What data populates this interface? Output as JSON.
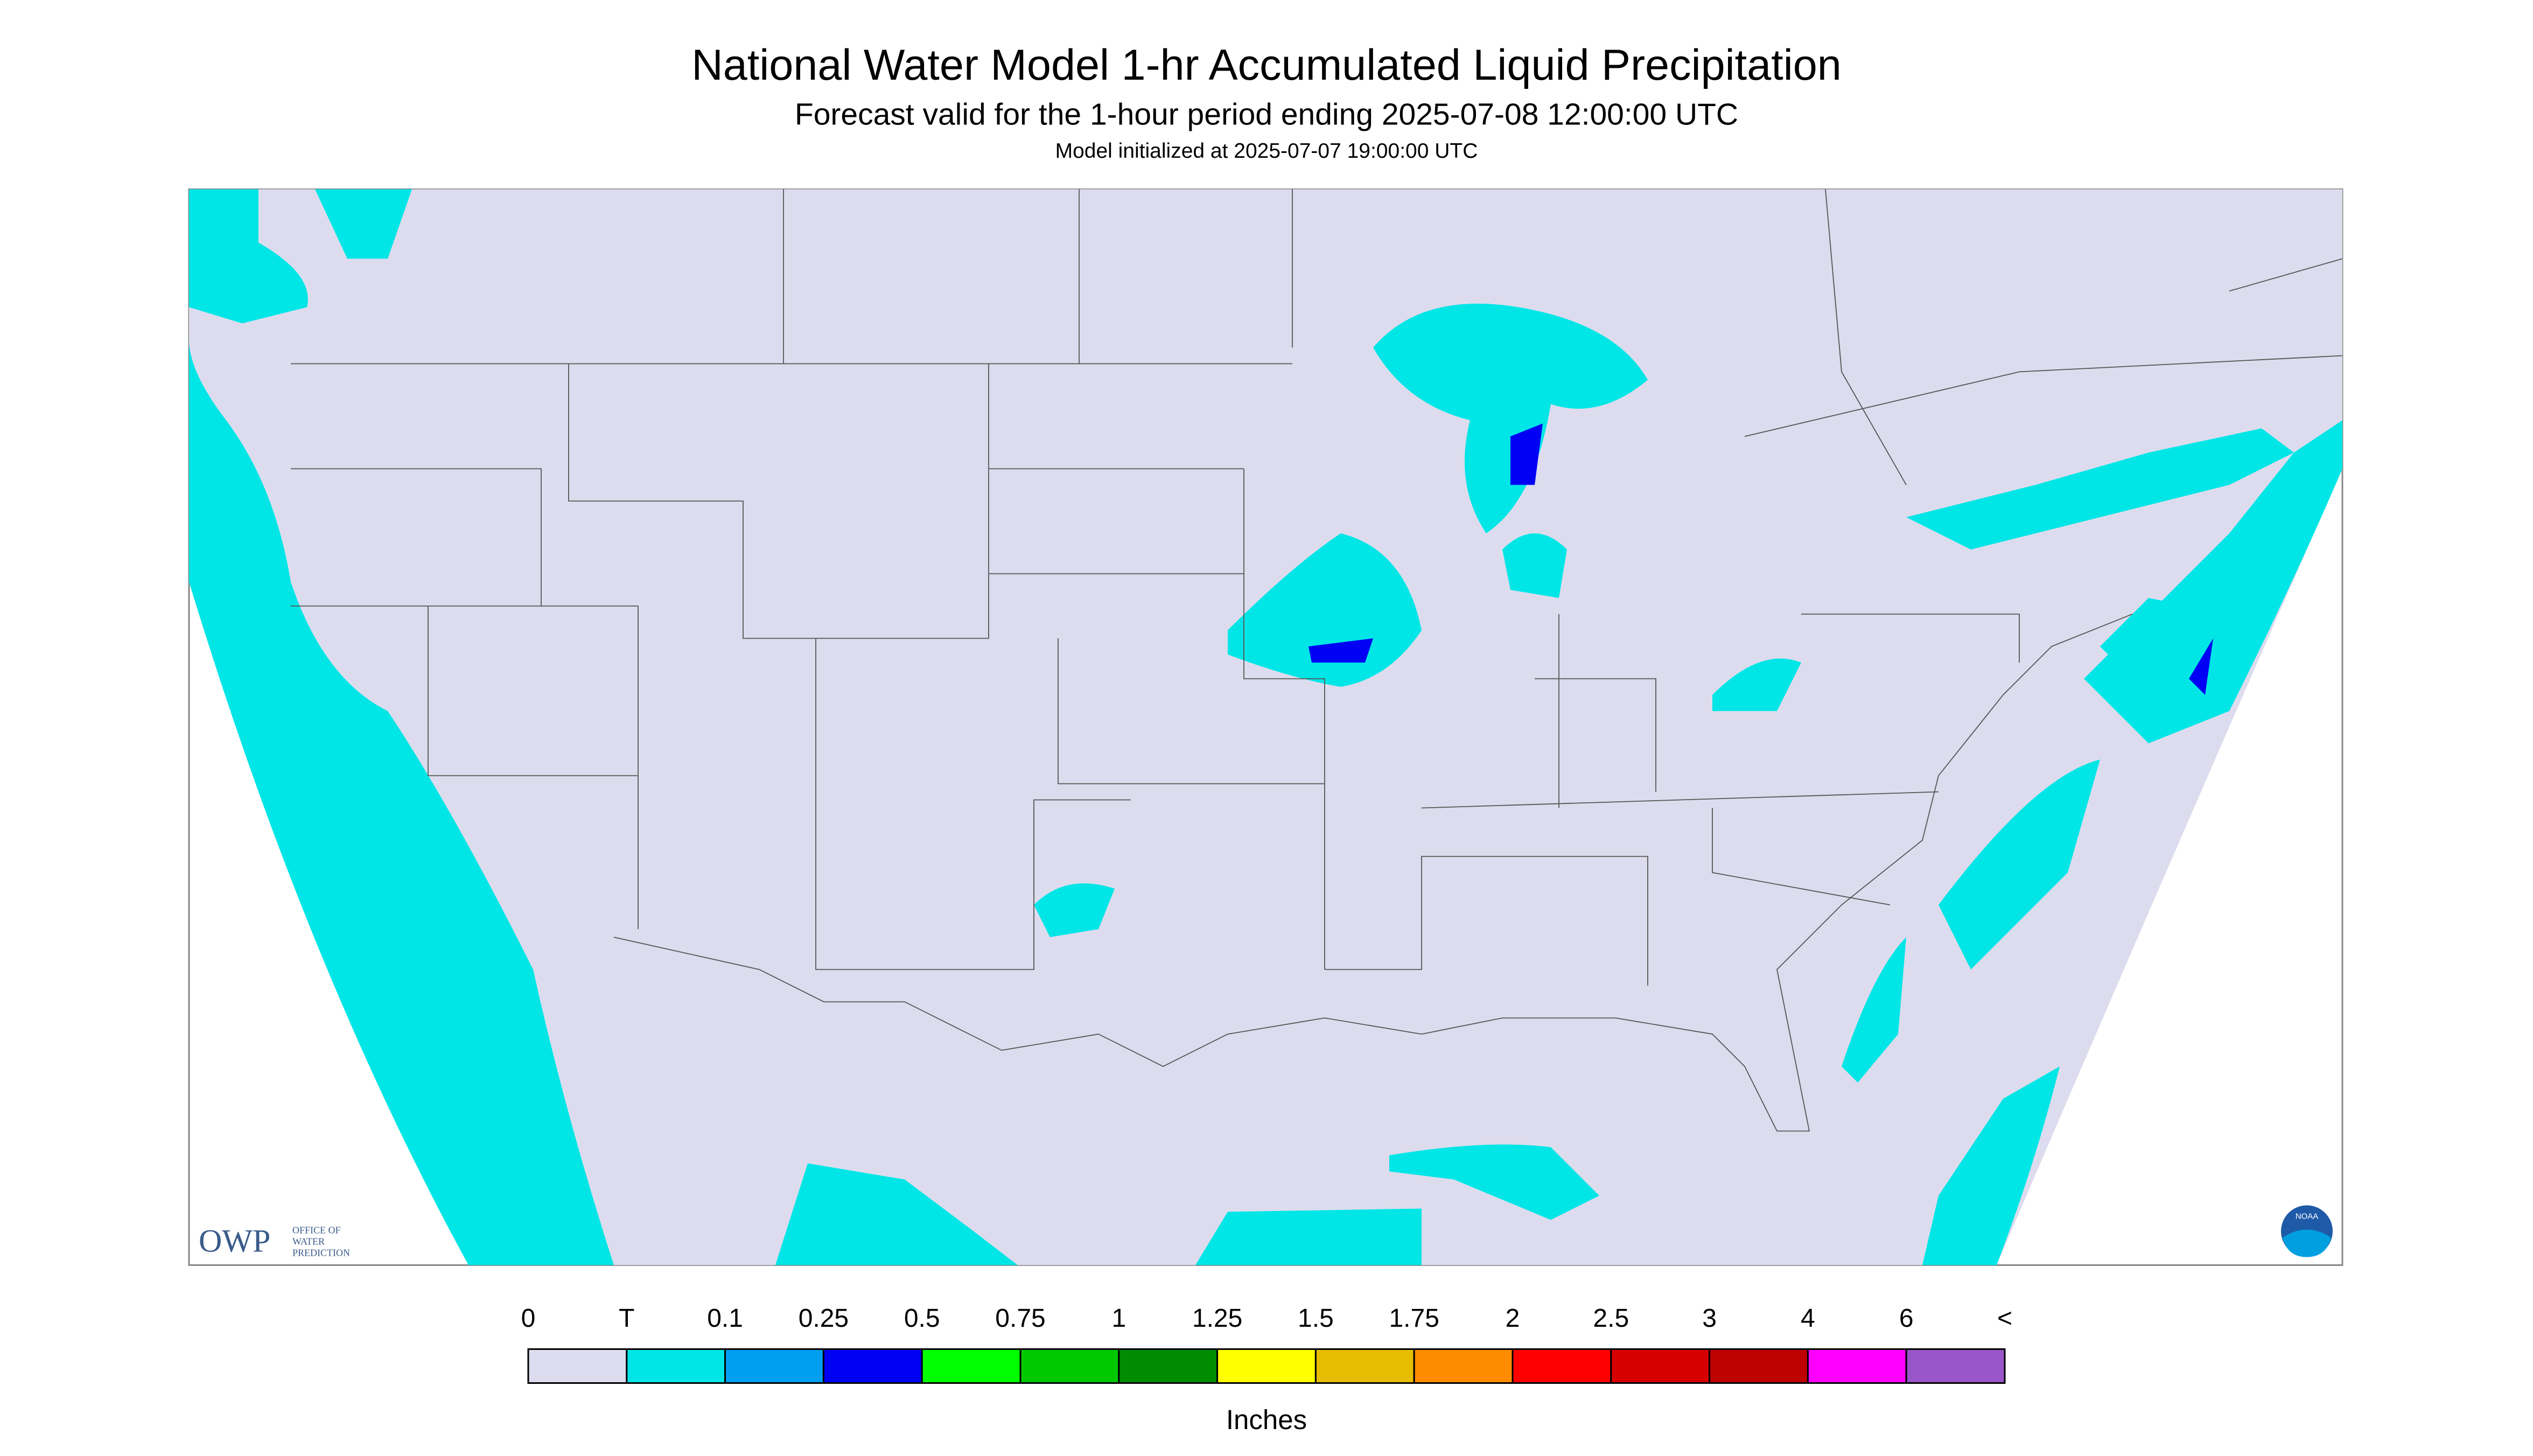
{
  "header": {
    "title": "National Water Model 1-hr Accumulated Liquid Precipitation",
    "subtitle": "Forecast valid for the 1-hour period ending 2025-07-08 12:00:00 UTC",
    "init": "Model initialized at 2025-07-07 19:00:00 UTC"
  },
  "logos": {
    "owp": "OWP",
    "owp_line1": "OFFICE OF",
    "owp_line2": "WATER",
    "owp_line3": "PREDICTION",
    "noaa": "NOAA"
  },
  "legend": {
    "labels": [
      "0",
      "T",
      "0.1",
      "0.25",
      "0.5",
      "0.75",
      "1",
      "1.25",
      "1.5",
      "1.75",
      "2",
      "2.5",
      "3",
      "4",
      "6",
      "<"
    ],
    "colors": [
      "#dcdcee",
      "#00e6e6",
      "#009ff0",
      "#0000f5",
      "#00ff00",
      "#00c800",
      "#008c00",
      "#ffff00",
      "#e6bd00",
      "#ff8c00",
      "#ff0000",
      "#d70000",
      "#bf0000",
      "#ff00ff",
      "#9955c9"
    ],
    "unit": "Inches"
  }
}
